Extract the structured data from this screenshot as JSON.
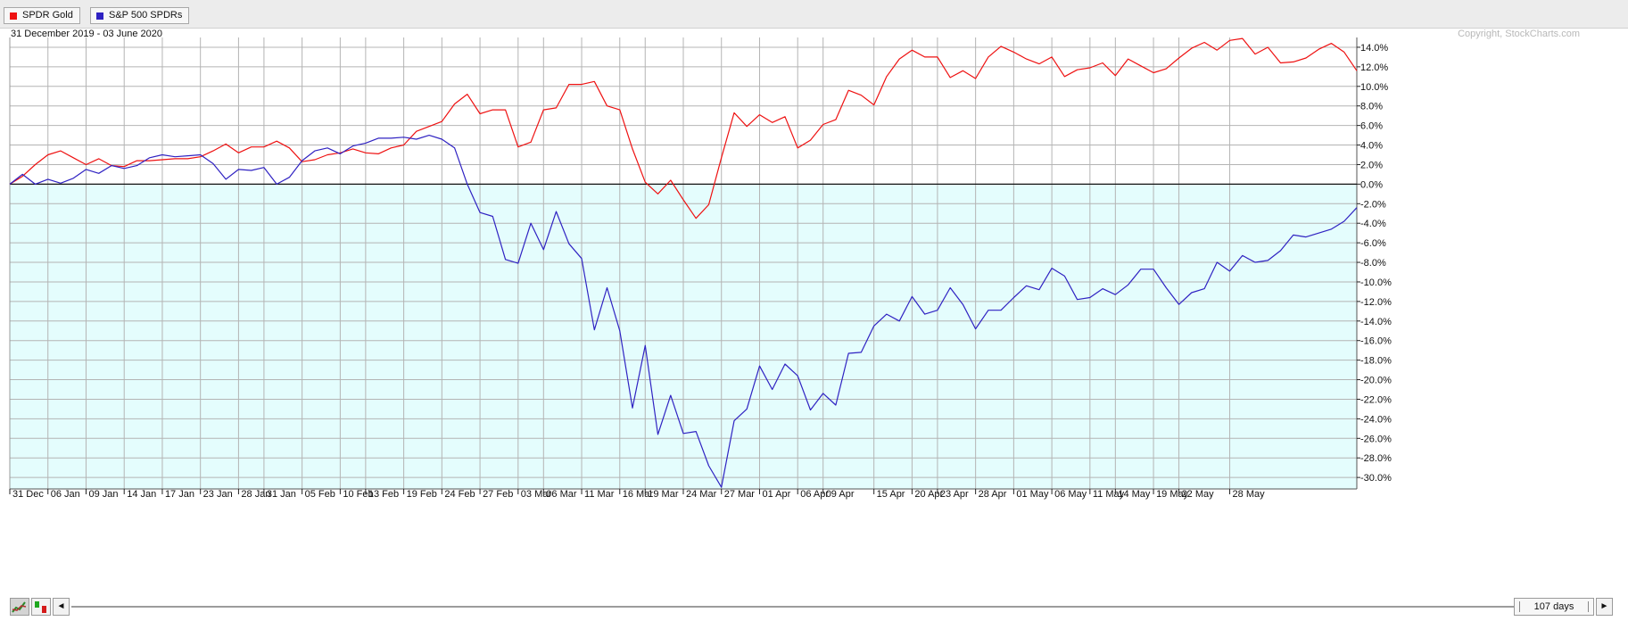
{
  "header": {
    "date_range": "31 December 2019 - 03 June 2020",
    "copyright": "Copyright, StockCharts.com"
  },
  "colors": {
    "gold": "#ee1111",
    "spy": "#2f22c2",
    "positive_bg": "#ffffff",
    "negative_bg": "#e4fdfd",
    "grid": "#b4b4b4"
  },
  "chart_data": {
    "type": "line",
    "y_unit": "%",
    "ylim": [
      -30.9,
      15.0
    ],
    "y_ticks": [
      14,
      12,
      10,
      8,
      6,
      4,
      2,
      0,
      -2,
      -4,
      -6,
      -8,
      -10,
      -12,
      -14,
      -16,
      -18,
      -20,
      -22,
      -24,
      -26,
      -28,
      -30
    ],
    "x_tick_labels": [
      "31 Dec",
      "06 Jan",
      "09 Jan",
      "14 Jan",
      "17 Jan",
      "23 Jan",
      "28 Jan",
      "31 Jan",
      "05 Feb",
      "10 Feb",
      "13 Feb",
      "19 Feb",
      "24 Feb",
      "27 Feb",
      "03 Mar",
      "06 Mar",
      "11 Mar",
      "16 Mar",
      "19 Mar",
      "24 Mar",
      "27 Mar",
      "01 Apr",
      "06 Apr",
      "09 Apr",
      "15 Apr",
      "20 Apr",
      "23 Apr",
      "28 Apr",
      "01 May",
      "06 May",
      "11 May",
      "14 May",
      "19 May",
      "22 May",
      "28 May"
    ],
    "x_tick_index": [
      0,
      3,
      6,
      9,
      12,
      15,
      18,
      20,
      23,
      26,
      28,
      31,
      34,
      37,
      40,
      42,
      45,
      48,
      50,
      53,
      56,
      59,
      62,
      64,
      68,
      71,
      73,
      76,
      79,
      82,
      85,
      87,
      90,
      92,
      96
    ],
    "grid": true,
    "legend_position": "top-left",
    "series": [
      {
        "name": "SPDR Gold",
        "values": [
          0.0,
          0.8,
          2.0,
          3.0,
          3.4,
          2.7,
          2.0,
          2.6,
          1.9,
          1.8,
          2.4,
          2.4,
          2.5,
          2.6,
          2.6,
          2.8,
          3.4,
          4.1,
          3.2,
          3.8,
          3.8,
          4.4,
          3.7,
          2.3,
          2.5,
          3.0,
          3.2,
          3.6,
          3.2,
          3.1,
          3.7,
          4.0,
          5.4,
          5.9,
          6.4,
          8.2,
          9.2,
          7.2,
          7.6,
          7.6,
          3.8,
          4.3,
          7.6,
          7.8,
          10.2,
          10.2,
          10.5,
          8.0,
          7.6,
          3.6,
          0.2,
          -1.0,
          0.4,
          -1.6,
          -3.5,
          -2.1,
          2.7,
          7.3,
          5.9,
          7.1,
          6.3,
          6.9,
          3.7,
          4.5,
          6.1,
          6.6,
          9.6,
          9.1,
          8.1,
          11.0,
          12.8,
          13.7,
          13.0,
          13.0,
          10.9,
          11.6,
          10.8,
          13.0,
          14.1,
          13.5,
          12.8,
          12.3,
          13.0,
          11.0,
          11.7,
          11.9,
          12.4,
          11.1,
          12.8,
          12.1,
          11.4,
          11.8,
          12.9,
          13.9,
          14.5,
          13.7,
          14.7,
          14.9,
          13.3,
          14.0,
          12.4,
          12.5,
          12.9,
          13.8,
          14.4,
          13.5,
          11.6
        ]
      },
      {
        "name": "S&P 500 SPDRs",
        "values": [
          0.0,
          1.0,
          0.0,
          0.5,
          0.1,
          0.6,
          1.5,
          1.1,
          1.9,
          1.6,
          1.9,
          2.7,
          3.0,
          2.8,
          2.9,
          3.0,
          2.1,
          0.5,
          1.5,
          1.4,
          1.7,
          0.0,
          0.7,
          2.4,
          3.4,
          3.7,
          3.1,
          3.9,
          4.2,
          4.7,
          4.7,
          4.8,
          4.6,
          5.0,
          4.6,
          3.7,
          0.0,
          -2.9,
          -3.3,
          -7.7,
          -8.1,
          -4.0,
          -6.7,
          -2.8,
          -6.1,
          -7.6,
          -14.9,
          -10.6,
          -15.0,
          -22.9,
          -16.5,
          -25.6,
          -21.6,
          -25.5,
          -25.3,
          -28.8,
          -31.0,
          -24.2,
          -23.0,
          -18.6,
          -21.0,
          -18.4,
          -19.6,
          -23.1,
          -21.4,
          -22.6,
          -17.3,
          -17.2,
          -14.5,
          -13.3,
          -14.0,
          -11.5,
          -13.3,
          -12.9,
          -10.6,
          -12.3,
          -14.8,
          -12.9,
          -12.9,
          -11.6,
          -10.4,
          -10.8,
          -8.6,
          -9.4,
          -11.8,
          -11.6,
          -10.7,
          -11.3,
          -10.3,
          -8.7,
          -8.7,
          -10.6,
          -12.3,
          -11.1,
          -10.7,
          -8.0,
          -8.9,
          -7.3,
          -8.0,
          -7.8,
          -6.8,
          -5.2,
          -5.4,
          -5.0,
          -4.6,
          -3.8,
          -2.4
        ]
      }
    ]
  },
  "footer": {
    "thumb_label": "107 days",
    "left_arrow": "◄",
    "right_arrow": "►"
  }
}
